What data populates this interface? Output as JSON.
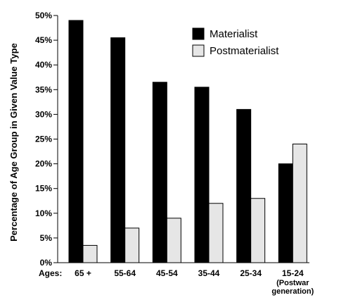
{
  "chart_data": {
    "type": "bar",
    "title": "",
    "ylabel": "Percentage of Age Group in Given Value Type",
    "xlabel_prefix": "Ages:",
    "categories": [
      "65 +",
      "55-64",
      "45-54",
      "35-44",
      "25-34",
      "15-24"
    ],
    "category_sublabels": [
      "",
      "",
      "",
      "",
      "",
      "(Postwar\ngeneration)"
    ],
    "category_sublabel_lines": [
      [
        "(Postwar",
        "generation)"
      ]
    ],
    "series": [
      {
        "name": "Materialist",
        "color": "#000000",
        "values": [
          49,
          45.5,
          36.5,
          35.5,
          31,
          20
        ]
      },
      {
        "name": "Postmaterialist",
        "color": "#e6e6e6",
        "values": [
          3.5,
          7,
          9,
          12,
          13,
          24
        ]
      }
    ],
    "ylim": [
      0,
      50
    ],
    "yticks": [
      "0%",
      "5%",
      "10%",
      "15%",
      "20%",
      "25%",
      "30%",
      "35%",
      "40%",
      "45%",
      "50%"
    ],
    "legend_position": "top-right",
    "grid": false
  }
}
